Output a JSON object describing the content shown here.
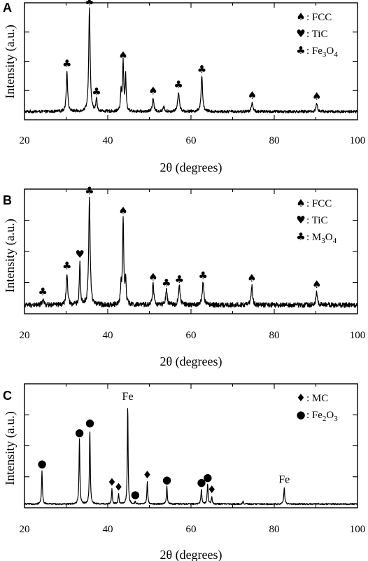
{
  "symbols": {
    "FCC": "♠",
    "TiC": "♥",
    "oxide": "♣",
    "MC": "♦",
    "Fe2O3": "●"
  },
  "chart_data": [
    {
      "type": "line",
      "panel": "A",
      "xlabel": "2θ (degrees)",
      "ylabel": "Intensity (a.u.)",
      "xlim": [
        20,
        100
      ],
      "ylim": [
        0,
        1
      ],
      "x_ticks": [
        20,
        40,
        60,
        80,
        100
      ],
      "legend": {
        "position": "top-right",
        "entries": [
          {
            "symbol": "FCC",
            "label": ": FCC"
          },
          {
            "symbol": "TiC",
            "label": ": TiC"
          },
          {
            "symbol": "oxide",
            "label": ": Fe",
            "sub1": "3",
            "mid": "O",
            "sub2": "4"
          }
        ]
      },
      "baseline": 0.07,
      "noise": 0.012,
      "peaks": [
        {
          "x": 30.2,
          "h": 0.35,
          "w": 0.28,
          "marker": "oxide"
        },
        {
          "x": 35.6,
          "h": 0.88,
          "w": 0.3,
          "marker": "oxide"
        },
        {
          "x": 37.3,
          "h": 0.11,
          "w": 0.25,
          "marker": "oxide"
        },
        {
          "x": 43.2,
          "h": 0.17,
          "w": 0.22
        },
        {
          "x": 43.7,
          "h": 0.42,
          "w": 0.24,
          "marker": "FCC"
        },
        {
          "x": 44.3,
          "h": 0.3,
          "w": 0.22
        },
        {
          "x": 50.9,
          "h": 0.12,
          "w": 0.3,
          "marker": "FCC"
        },
        {
          "x": 53.5,
          "h": 0.04,
          "w": 0.3
        },
        {
          "x": 57.0,
          "h": 0.17,
          "w": 0.35,
          "marker": "oxide"
        },
        {
          "x": 62.6,
          "h": 0.3,
          "w": 0.32,
          "marker": "oxide"
        },
        {
          "x": 74.7,
          "h": 0.08,
          "w": 0.3,
          "marker": "FCC"
        },
        {
          "x": 90.2,
          "h": 0.07,
          "w": 0.3,
          "marker": "FCC"
        }
      ]
    },
    {
      "type": "line",
      "panel": "B",
      "xlabel": "2θ (degrees)",
      "ylabel": "Intensity (a.u.)",
      "xlim": [
        20,
        100
      ],
      "ylim": [
        0,
        1
      ],
      "x_ticks": [
        20,
        40,
        60,
        80,
        100
      ],
      "legend": {
        "position": "top-right",
        "entries": [
          {
            "symbol": "FCC",
            "label": ": FCC"
          },
          {
            "symbol": "TiC",
            "label": ": TiC"
          },
          {
            "symbol": "oxide",
            "label": ": M",
            "sub1": "3",
            "mid": "O",
            "sub2": "4"
          }
        ]
      },
      "baseline": 0.07,
      "noise": 0.02,
      "peaks": [
        {
          "x": 24.4,
          "h": 0.05,
          "w": 0.3,
          "marker": "oxide"
        },
        {
          "x": 30.2,
          "h": 0.26,
          "w": 0.28,
          "marker": "oxide"
        },
        {
          "x": 33.3,
          "h": 0.35,
          "w": 0.22,
          "marker": "TiC"
        },
        {
          "x": 35.6,
          "h": 0.86,
          "w": 0.3,
          "marker": "oxide"
        },
        {
          "x": 43.2,
          "h": 0.15,
          "w": 0.22
        },
        {
          "x": 43.7,
          "h": 0.7,
          "w": 0.24,
          "marker": "FCC"
        },
        {
          "x": 44.3,
          "h": 0.2,
          "w": 0.22
        },
        {
          "x": 50.9,
          "h": 0.17,
          "w": 0.3,
          "marker": "FCC"
        },
        {
          "x": 54.1,
          "h": 0.12,
          "w": 0.3,
          "marker": "oxide"
        },
        {
          "x": 57.2,
          "h": 0.15,
          "w": 0.35,
          "marker": "oxide"
        },
        {
          "x": 62.9,
          "h": 0.18,
          "w": 0.35,
          "marker": "oxide"
        },
        {
          "x": 74.6,
          "h": 0.16,
          "w": 0.3,
          "marker": "FCC"
        },
        {
          "x": 90.2,
          "h": 0.11,
          "w": 0.32,
          "marker": "FCC"
        }
      ]
    },
    {
      "type": "line",
      "panel": "C",
      "xlabel": "2θ (degrees)",
      "ylabel": "Intensity (a.u.)",
      "xlim": [
        20,
        100
      ],
      "ylim": [
        0,
        1
      ],
      "x_ticks": [
        20,
        40,
        60,
        80,
        100
      ],
      "legend": {
        "position": "top-right",
        "entries": [
          {
            "symbol": "MC",
            "label": ": MC"
          },
          {
            "symbol": "Fe2O3",
            "label": ": Fe",
            "sub1": "2",
            "mid": "O",
            "sub2": "3"
          }
        ]
      },
      "baseline": 0.03,
      "noise": 0.006,
      "peaks": [
        {
          "x": 24.2,
          "h": 0.27,
          "w": 0.18,
          "marker": "Fe2O3"
        },
        {
          "x": 33.2,
          "h": 0.52,
          "w": 0.18,
          "marker": "Fe2O3"
        },
        {
          "x": 35.7,
          "h": 0.6,
          "w": 0.18,
          "marker": "Fe2O3"
        },
        {
          "x": 41.0,
          "h": 0.12,
          "w": 0.18,
          "marker": "MC"
        },
        {
          "x": 42.6,
          "h": 0.08,
          "w": 0.18,
          "marker": "MC"
        },
        {
          "x": 44.8,
          "h": 0.8,
          "w": 0.16,
          "label": "Fe"
        },
        {
          "x": 46.6,
          "h": 0.02,
          "w": 0.18,
          "marker": "Fe2O3"
        },
        {
          "x": 49.5,
          "h": 0.18,
          "w": 0.18,
          "marker": "MC"
        },
        {
          "x": 54.2,
          "h": 0.14,
          "w": 0.18,
          "marker": "Fe2O3"
        },
        {
          "x": 62.5,
          "h": 0.12,
          "w": 0.2,
          "marker": "Fe2O3"
        },
        {
          "x": 64.0,
          "h": 0.16,
          "w": 0.2,
          "marker": "Fe2O3"
        },
        {
          "x": 65.0,
          "h": 0.06,
          "w": 0.18,
          "marker": "MC"
        },
        {
          "x": 72.5,
          "h": 0.02,
          "w": 0.2
        },
        {
          "x": 82.4,
          "h": 0.13,
          "w": 0.2,
          "label": "Fe"
        }
      ]
    }
  ]
}
